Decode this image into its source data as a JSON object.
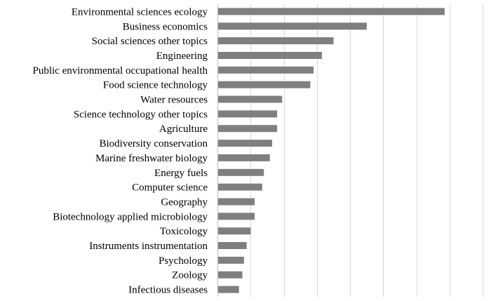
{
  "chart_data": {
    "type": "bar",
    "orientation": "horizontal",
    "title": "",
    "xlabel": "",
    "ylabel": "",
    "categories": [
      "Environmental sciences ecology",
      "Business economics",
      "Social sciences other topics",
      "Engineering",
      "Public environmental occupational health",
      "Food science technology",
      "Water resources",
      "Science technology other topics",
      "Agriculture",
      "Biodiversity conservation",
      "Marine freshwater biology",
      "Energy fuels",
      "Computer science",
      "Geography",
      "Biotechnology applied microbiology",
      "Toxicology",
      "Instruments instrumentation",
      "Psychology",
      "Zoology",
      "Infectious diseases"
    ],
    "values": [
      68.5,
      45.0,
      35.0,
      31.5,
      29.0,
      28.0,
      19.5,
      18.0,
      18.0,
      16.5,
      15.8,
      14.0,
      13.5,
      11.2,
      11.2,
      10.0,
      8.8,
      8.0,
      7.5,
      6.5
    ],
    "xlim": [
      0,
      81
    ],
    "grid_step": 10,
    "grid": true,
    "x_tick_labels_shown": false,
    "legend": "none",
    "colors": {
      "bar": "#7f7f7f",
      "grid": "#d9d9d9",
      "axis": "#bfbfbf",
      "text": "#000000"
    }
  }
}
